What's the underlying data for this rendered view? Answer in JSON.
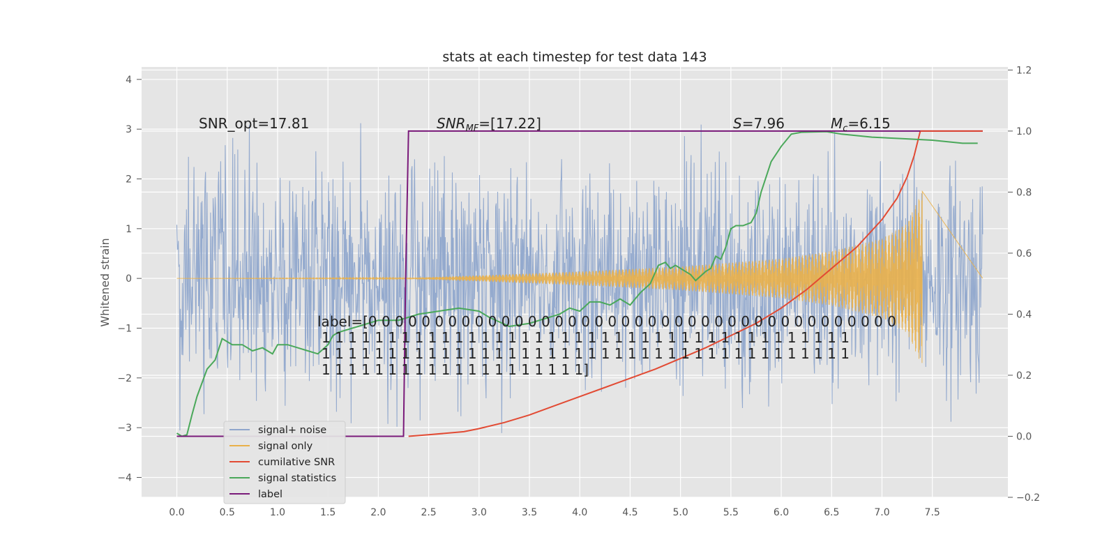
{
  "chart_data": {
    "type": "line",
    "title": "stats at each timestep for test data 143",
    "ylabel": "Whitened strain",
    "xlabel": "",
    "x_ticks": [
      "0.0",
      "0.5",
      "1.0",
      "1.5",
      "2.0",
      "2.5",
      "3.0",
      "3.5",
      "4.0",
      "4.5",
      "5.0",
      "5.5",
      "6.0",
      "6.5",
      "7.0",
      "7.5"
    ],
    "x_tick_values": [
      0,
      0.5,
      1,
      1.5,
      2,
      2.5,
      3,
      3.5,
      4,
      4.5,
      5,
      5.5,
      6,
      6.5,
      7,
      7.5
    ],
    "y_left_ticks": [
      "−4",
      "−3",
      "−2",
      "−1",
      "0",
      "1",
      "2",
      "3",
      "4"
    ],
    "y_left_tick_values": [
      -4,
      -3,
      -2,
      -1,
      0,
      1,
      2,
      3,
      4
    ],
    "y_right_ticks": [
      "−0.2",
      "0.0",
      "0.2",
      "0.4",
      "0.6",
      "0.8",
      "1.0",
      "1.2"
    ],
    "y_right_tick_values": [
      -0.2,
      0,
      0.2,
      0.4,
      0.6,
      0.8,
      1.0,
      1.2
    ],
    "xlim": [
      -0.35,
      8.25
    ],
    "ylim_left": [
      -4.4,
      4.25
    ],
    "ylim_right": [
      -0.2,
      1.21
    ],
    "grid": true,
    "legend_position": "lower-left",
    "annotations": {
      "snr_opt": "SNR_opt=17.81",
      "snr_mf_label": "SNR",
      "snr_mf_sub": "MF",
      "snr_mf_value": "=[17.22]",
      "s_label": "S",
      "s_value": "=7.96",
      "mc_label": "M",
      "mc_sub": "c",
      "mc_value": "=6.15",
      "label_line1": "label=[0 0 0 0 0 0 0 0 0 0 0 0 0 0 0 0 0 0 0 0 0 0 0 0 0 0 0 0 0 0 0 0 0 0 0 0 0 0 0 0",
      "label_line2": "1 1 1 1 1 1 1 1 1 1 1 1 1 1 1 1 1 1 1 1 1 1 1 1 1 1 1 1 1 1 1 1 1 1 1 1 1 1 1 1",
      "label_line3": "1 1 1 1 1 1 1 1 1 1 1 1 1 1 1 1 1 1 1 1 1 1 1 1 1 1 1 1 1 1 1 1 1 1 1 1 1 1 1 1",
      "label_line4": "1 1 1 1 1 1 1 1 1 1 1 1 1 1 1 1 1 1 1 1]"
    },
    "legend": [
      "signal+ noise",
      "signal only",
      "cumilative SNR",
      "signal statistics",
      "label"
    ],
    "colors": {
      "noise": "#8fa6cc",
      "signal": "#e9b04a",
      "cumulative_snr": "#e24a33",
      "statistics": "#4aa85a",
      "label": "#7a1a7a",
      "background": "#e5e5e5",
      "grid": "#ffffff"
    },
    "series": [
      {
        "name": "signal+ noise",
        "axis": "left",
        "description_values": "dense whitened-strain noise between about -3 and 3",
        "x_range": [
          0.0,
          8.0
        ],
        "y_typical_range": [
          -3.0,
          3.0
        ]
      },
      {
        "name": "signal only",
        "axis": "left",
        "x_range": [
          0.0,
          7.4
        ],
        "envelope": [
          [
            0.0,
            0.0
          ],
          [
            2.3,
            0.01
          ],
          [
            3.0,
            0.06
          ],
          [
            4.0,
            0.14
          ],
          [
            5.0,
            0.24
          ],
          [
            6.0,
            0.4
          ],
          [
            6.5,
            0.55
          ],
          [
            7.0,
            0.8
          ],
          [
            7.25,
            1.1
          ],
          [
            7.35,
            1.55
          ],
          [
            7.4,
            1.75
          ]
        ]
      },
      {
        "name": "cumilative SNR",
        "axis": "right",
        "x": [
          2.3,
          2.5,
          2.85,
          3.0,
          3.25,
          3.5,
          3.75,
          4.0,
          4.25,
          4.5,
          4.75,
          5.0,
          5.25,
          5.5,
          5.75,
          6.0,
          6.25,
          6.5,
          6.75,
          7.0,
          7.15,
          7.25,
          7.32,
          7.38
        ],
        "y": [
          0.0,
          0.005,
          0.015,
          0.025,
          0.045,
          0.07,
          0.1,
          0.13,
          0.16,
          0.19,
          0.22,
          0.255,
          0.29,
          0.33,
          0.37,
          0.42,
          0.48,
          0.55,
          0.62,
          0.71,
          0.78,
          0.85,
          0.92,
          1.0
        ]
      },
      {
        "name": "signal statistics",
        "axis": "right",
        "x": [
          0.0,
          0.05,
          0.1,
          0.15,
          0.2,
          0.3,
          0.38,
          0.45,
          0.55,
          0.65,
          0.75,
          0.85,
          0.95,
          1.0,
          1.1,
          1.2,
          1.3,
          1.4,
          1.5,
          1.55,
          1.6,
          1.8,
          2.0,
          2.2,
          2.4,
          2.6,
          2.8,
          3.0,
          3.1,
          3.3,
          3.5,
          3.7,
          3.8,
          3.9,
          4.0,
          4.1,
          4.2,
          4.3,
          4.4,
          4.5,
          4.6,
          4.7,
          4.78,
          4.85,
          4.9,
          4.95,
          5.0,
          5.1,
          5.15,
          5.25,
          5.3,
          5.35,
          5.4,
          5.45,
          5.5,
          5.55,
          5.62,
          5.7,
          5.75,
          5.8,
          5.9,
          6.0,
          6.1,
          6.2,
          6.3,
          6.45,
          6.6,
          6.9,
          7.2,
          7.5,
          7.8,
          7.95
        ],
        "y": [
          0.01,
          0.0,
          0.005,
          0.07,
          0.13,
          0.22,
          0.25,
          0.32,
          0.3,
          0.3,
          0.28,
          0.29,
          0.27,
          0.3,
          0.3,
          0.29,
          0.28,
          0.27,
          0.3,
          0.33,
          0.34,
          0.36,
          0.38,
          0.38,
          0.4,
          0.41,
          0.42,
          0.41,
          0.39,
          0.36,
          0.37,
          0.39,
          0.4,
          0.42,
          0.41,
          0.44,
          0.44,
          0.43,
          0.45,
          0.43,
          0.47,
          0.5,
          0.56,
          0.57,
          0.55,
          0.56,
          0.55,
          0.53,
          0.51,
          0.54,
          0.55,
          0.59,
          0.58,
          0.62,
          0.68,
          0.69,
          0.69,
          0.7,
          0.73,
          0.8,
          0.9,
          0.95,
          0.99,
          0.996,
          0.997,
          0.998,
          0.99,
          0.98,
          0.975,
          0.97,
          0.96,
          0.96
        ]
      },
      {
        "name": "label",
        "axis": "right",
        "x": [
          0.0,
          2.25,
          2.27,
          2.3,
          2.32,
          8.0
        ],
        "y": [
          0.0,
          0.0,
          0.5,
          1.0,
          1.0,
          1.0
        ]
      }
    ]
  }
}
